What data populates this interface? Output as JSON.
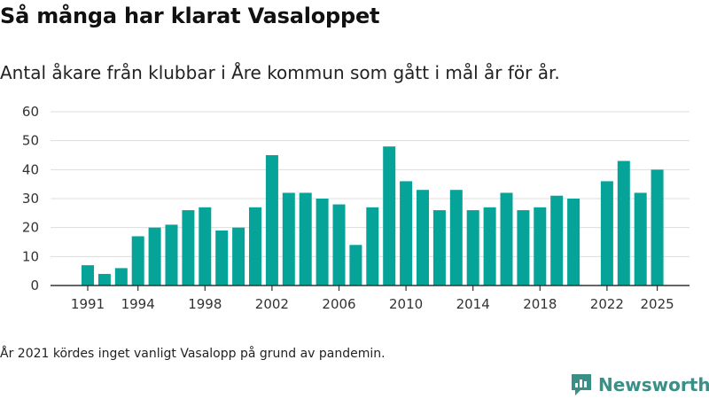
{
  "title": "Så många har klarat Vasaloppet",
  "subtitle": "Antal åkare från klubbar i Åre kommun som gått i mål år för år.",
  "footnote": "År 2021 kördes inget vanligt Vasalopp på grund av pandemin.",
  "brand": "Newsworthy",
  "colors": {
    "bar": "#05a398",
    "grid": "#dddddd",
    "axis": "#333333",
    "brand": "#3a8f87"
  },
  "icons": {
    "brand_logo": "newsworthy-logo-icon"
  },
  "chart_data": {
    "type": "bar",
    "title": "",
    "xlabel": "",
    "ylabel": "",
    "ylim": [
      0,
      60
    ],
    "yticks": [
      0,
      10,
      20,
      30,
      40,
      50,
      60
    ],
    "xticks": [
      1991,
      1994,
      1998,
      2002,
      2006,
      2010,
      2014,
      2018,
      2022,
      2025
    ],
    "x": [
      1991,
      1992,
      1993,
      1994,
      1995,
      1996,
      1997,
      1998,
      1999,
      2000,
      2001,
      2002,
      2003,
      2004,
      2005,
      2006,
      2007,
      2008,
      2009,
      2010,
      2011,
      2012,
      2013,
      2014,
      2015,
      2016,
      2017,
      2018,
      2019,
      2020,
      2022,
      2023,
      2024,
      2025
    ],
    "values": [
      7,
      4,
      6,
      17,
      20,
      21,
      26,
      27,
      19,
      20,
      27,
      45,
      32,
      32,
      30,
      28,
      14,
      27,
      48,
      36,
      33,
      26,
      33,
      26,
      27,
      32,
      26,
      27,
      31,
      30,
      36,
      43,
      32,
      40
    ],
    "grid": true
  }
}
